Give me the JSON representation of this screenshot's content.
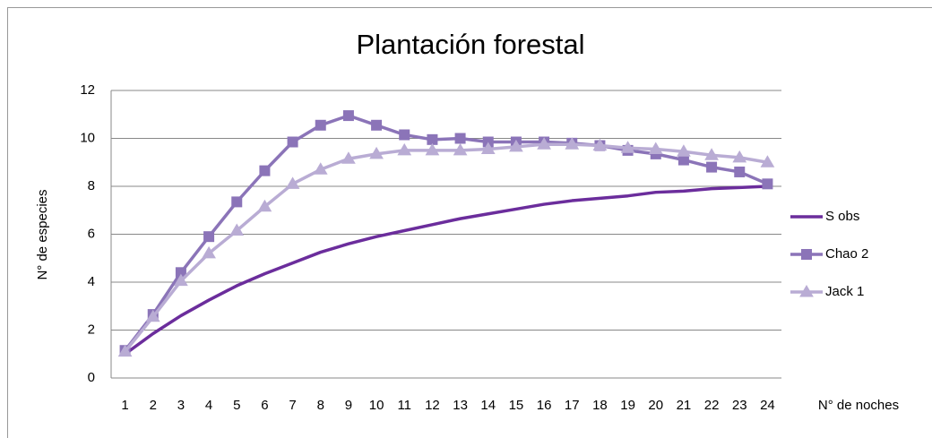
{
  "chart_data": {
    "type": "line",
    "title": "Plantación forestal",
    "y_label": "N° de especies",
    "x_label": "N° de noches",
    "categories": [
      1,
      2,
      3,
      4,
      5,
      6,
      7,
      8,
      9,
      10,
      11,
      12,
      13,
      14,
      15,
      16,
      17,
      18,
      19,
      20,
      21,
      22,
      23,
      24
    ],
    "series": [
      {
        "name": "S obs",
        "color": "#6b2d9c",
        "marker": "none",
        "values": [
          1.0,
          1.85,
          2.6,
          3.25,
          3.85,
          4.35,
          4.8,
          5.25,
          5.6,
          5.9,
          6.15,
          6.4,
          6.65,
          6.85,
          7.05,
          7.25,
          7.4,
          7.5,
          7.6,
          7.75,
          7.8,
          7.9,
          7.95,
          8.0
        ]
      },
      {
        "name": "Chao 2",
        "color": "#8b74b8",
        "marker": "square",
        "values": [
          1.15,
          2.65,
          4.4,
          5.9,
          7.35,
          8.65,
          9.85,
          10.55,
          10.95,
          10.55,
          10.15,
          9.95,
          10.0,
          9.85,
          9.85,
          9.85,
          9.8,
          9.7,
          9.5,
          9.35,
          9.1,
          8.8,
          8.6,
          8.1
        ]
      },
      {
        "name": "Jack 1",
        "color": "#b9acd4",
        "marker": "triangle",
        "values": [
          1.1,
          2.55,
          4.05,
          5.2,
          6.15,
          7.15,
          8.1,
          8.7,
          9.15,
          9.35,
          9.5,
          9.5,
          9.5,
          9.55,
          9.65,
          9.75,
          9.75,
          9.7,
          9.6,
          9.55,
          9.45,
          9.3,
          9.2,
          9.0
        ]
      }
    ],
    "ylim": [
      0,
      12
    ],
    "yticks": [
      0,
      2,
      4,
      6,
      8,
      10,
      12
    ],
    "grid": true,
    "legend": "right"
  }
}
